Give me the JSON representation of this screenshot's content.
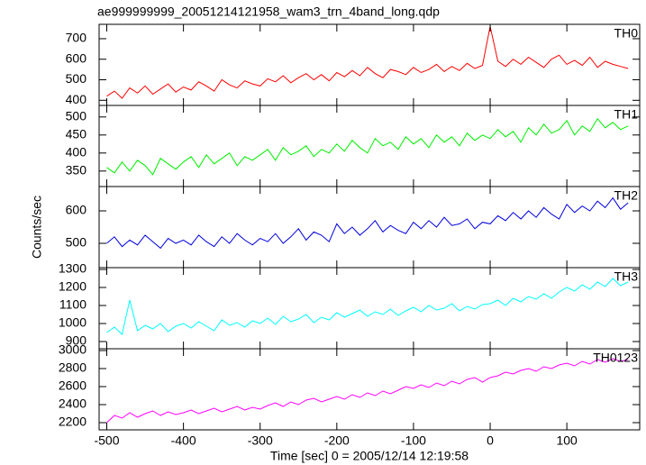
{
  "chart_data": {
    "type": "line",
    "title": "ae999999999_20051214121958_wam3_trn_4band_long.qdp",
    "xlabel": "Time [sec] 0 = 2005/12/14 12:19:58",
    "ylabel": "Counts/sec",
    "xlim": [
      -510,
      195
    ],
    "xticks": [
      -500,
      -400,
      -300,
      -200,
      -100,
      0,
      100
    ],
    "x": [
      -500,
      -490,
      -480,
      -470,
      -460,
      -450,
      -440,
      -430,
      -420,
      -410,
      -400,
      -390,
      -380,
      -370,
      -360,
      -350,
      -340,
      -330,
      -320,
      -310,
      -300,
      -290,
      -280,
      -270,
      -260,
      -250,
      -240,
      -230,
      -220,
      -210,
      -200,
      -190,
      -180,
      -170,
      -160,
      -150,
      -140,
      -130,
      -120,
      -110,
      -100,
      -90,
      -80,
      -70,
      -60,
      -50,
      -40,
      -30,
      -20,
      -10,
      0,
      10,
      20,
      30,
      40,
      50,
      60,
      70,
      80,
      90,
      100,
      110,
      120,
      130,
      140,
      150,
      160,
      170,
      180
    ],
    "series": [
      {
        "name": "TH0",
        "color": "#ff0000",
        "ylim": [
          375,
          770
        ],
        "yticks": [
          400,
          500,
          600,
          700
        ],
        "values": [
          420,
          445,
          410,
          460,
          435,
          470,
          430,
          455,
          480,
          440,
          465,
          450,
          490,
          470,
          445,
          500,
          475,
          460,
          495,
          480,
          470,
          505,
          490,
          520,
          485,
          510,
          530,
          500,
          525,
          495,
          535,
          515,
          545,
          520,
          560,
          530,
          510,
          550,
          540,
          525,
          560,
          535,
          550,
          575,
          540,
          565,
          545,
          580,
          555,
          570,
          760,
          590,
          565,
          600,
          575,
          610,
          585,
          560,
          600,
          620,
          575,
          595,
          570,
          610,
          560,
          590,
          575,
          565,
          555
        ]
      },
      {
        "name": "TH1",
        "color": "#00ee00",
        "ylim": [
          307,
          532
        ],
        "yticks": [
          350,
          400,
          450,
          500
        ],
        "values": [
          360,
          345,
          375,
          350,
          380,
          365,
          340,
          385,
          370,
          355,
          375,
          390,
          360,
          395,
          370,
          385,
          400,
          365,
          390,
          380,
          395,
          410,
          380,
          415,
          395,
          405,
          420,
          390,
          410,
          400,
          425,
          405,
          435,
          415,
          400,
          440,
          420,
          430,
          410,
          445,
          425,
          440,
          415,
          450,
          430,
          445,
          420,
          455,
          435,
          450,
          440,
          465,
          445,
          460,
          430,
          470,
          450,
          480,
          455,
          465,
          490,
          450,
          475,
          460,
          495,
          470,
          485,
          465,
          475
        ]
      },
      {
        "name": "TH2",
        "color": "#0000dd",
        "ylim": [
          425,
          675
        ],
        "yticks": [
          500,
          600
        ],
        "values": [
          500,
          520,
          490,
          510,
          495,
          525,
          505,
          485,
          515,
          500,
          510,
          495,
          525,
          505,
          490,
          520,
          500,
          530,
          510,
          495,
          515,
          505,
          530,
          500,
          520,
          545,
          510,
          535,
          525,
          505,
          560,
          530,
          550,
          525,
          545,
          570,
          535,
          555,
          540,
          530,
          565,
          545,
          570,
          550,
          580,
          555,
          560,
          575,
          545,
          565,
          560,
          585,
          570,
          595,
          575,
          600,
          580,
          610,
          590,
          575,
          620,
          595,
          615,
          600,
          630,
          610,
          640,
          605,
          625
        ]
      },
      {
        "name": "TH3",
        "color": "#00ffff",
        "ylim": [
          860,
          1310
        ],
        "yticks": [
          900,
          1000,
          1100,
          1200,
          1300
        ],
        "values": [
          950,
          980,
          940,
          1130,
          960,
          990,
          970,
          1000,
          955,
          985,
          1000,
          975,
          1010,
          985,
          960,
          1020,
          990,
          1005,
          980,
          1015,
          1000,
          1030,
          995,
          1040,
          1010,
          1025,
          1050,
          1005,
          1035,
          1020,
          1060,
          1035,
          1055,
          1075,
          1040,
          1065,
          1050,
          1080,
          1045,
          1070,
          1090,
          1065,
          1100,
          1075,
          1085,
          1110,
          1070,
          1095,
          1080,
          1105,
          1110,
          1130,
          1100,
          1140,
          1120,
          1150,
          1135,
          1165,
          1140,
          1175,
          1200,
          1180,
          1215,
          1190,
          1230,
          1205,
          1250,
          1210,
          1230
        ]
      },
      {
        "name": "TH0123",
        "color": "#ff00ff",
        "ylim": [
          2120,
          3020
        ],
        "yticks": [
          2200,
          2400,
          2600,
          2800,
          3000
        ],
        "values": [
          2200,
          2280,
          2250,
          2310,
          2260,
          2300,
          2330,
          2280,
          2320,
          2290,
          2310,
          2340,
          2300,
          2330,
          2360,
          2320,
          2350,
          2380,
          2340,
          2370,
          2350,
          2390,
          2420,
          2380,
          2430,
          2400,
          2450,
          2470,
          2430,
          2460,
          2490,
          2460,
          2510,
          2480,
          2530,
          2500,
          2550,
          2520,
          2560,
          2600,
          2580,
          2620,
          2590,
          2640,
          2610,
          2660,
          2630,
          2680,
          2700,
          2650,
          2700,
          2720,
          2760,
          2740,
          2780,
          2800,
          2770,
          2820,
          2800,
          2840,
          2860,
          2830,
          2880,
          2850,
          2900,
          2870,
          2910,
          2880,
          2900
        ]
      }
    ]
  }
}
